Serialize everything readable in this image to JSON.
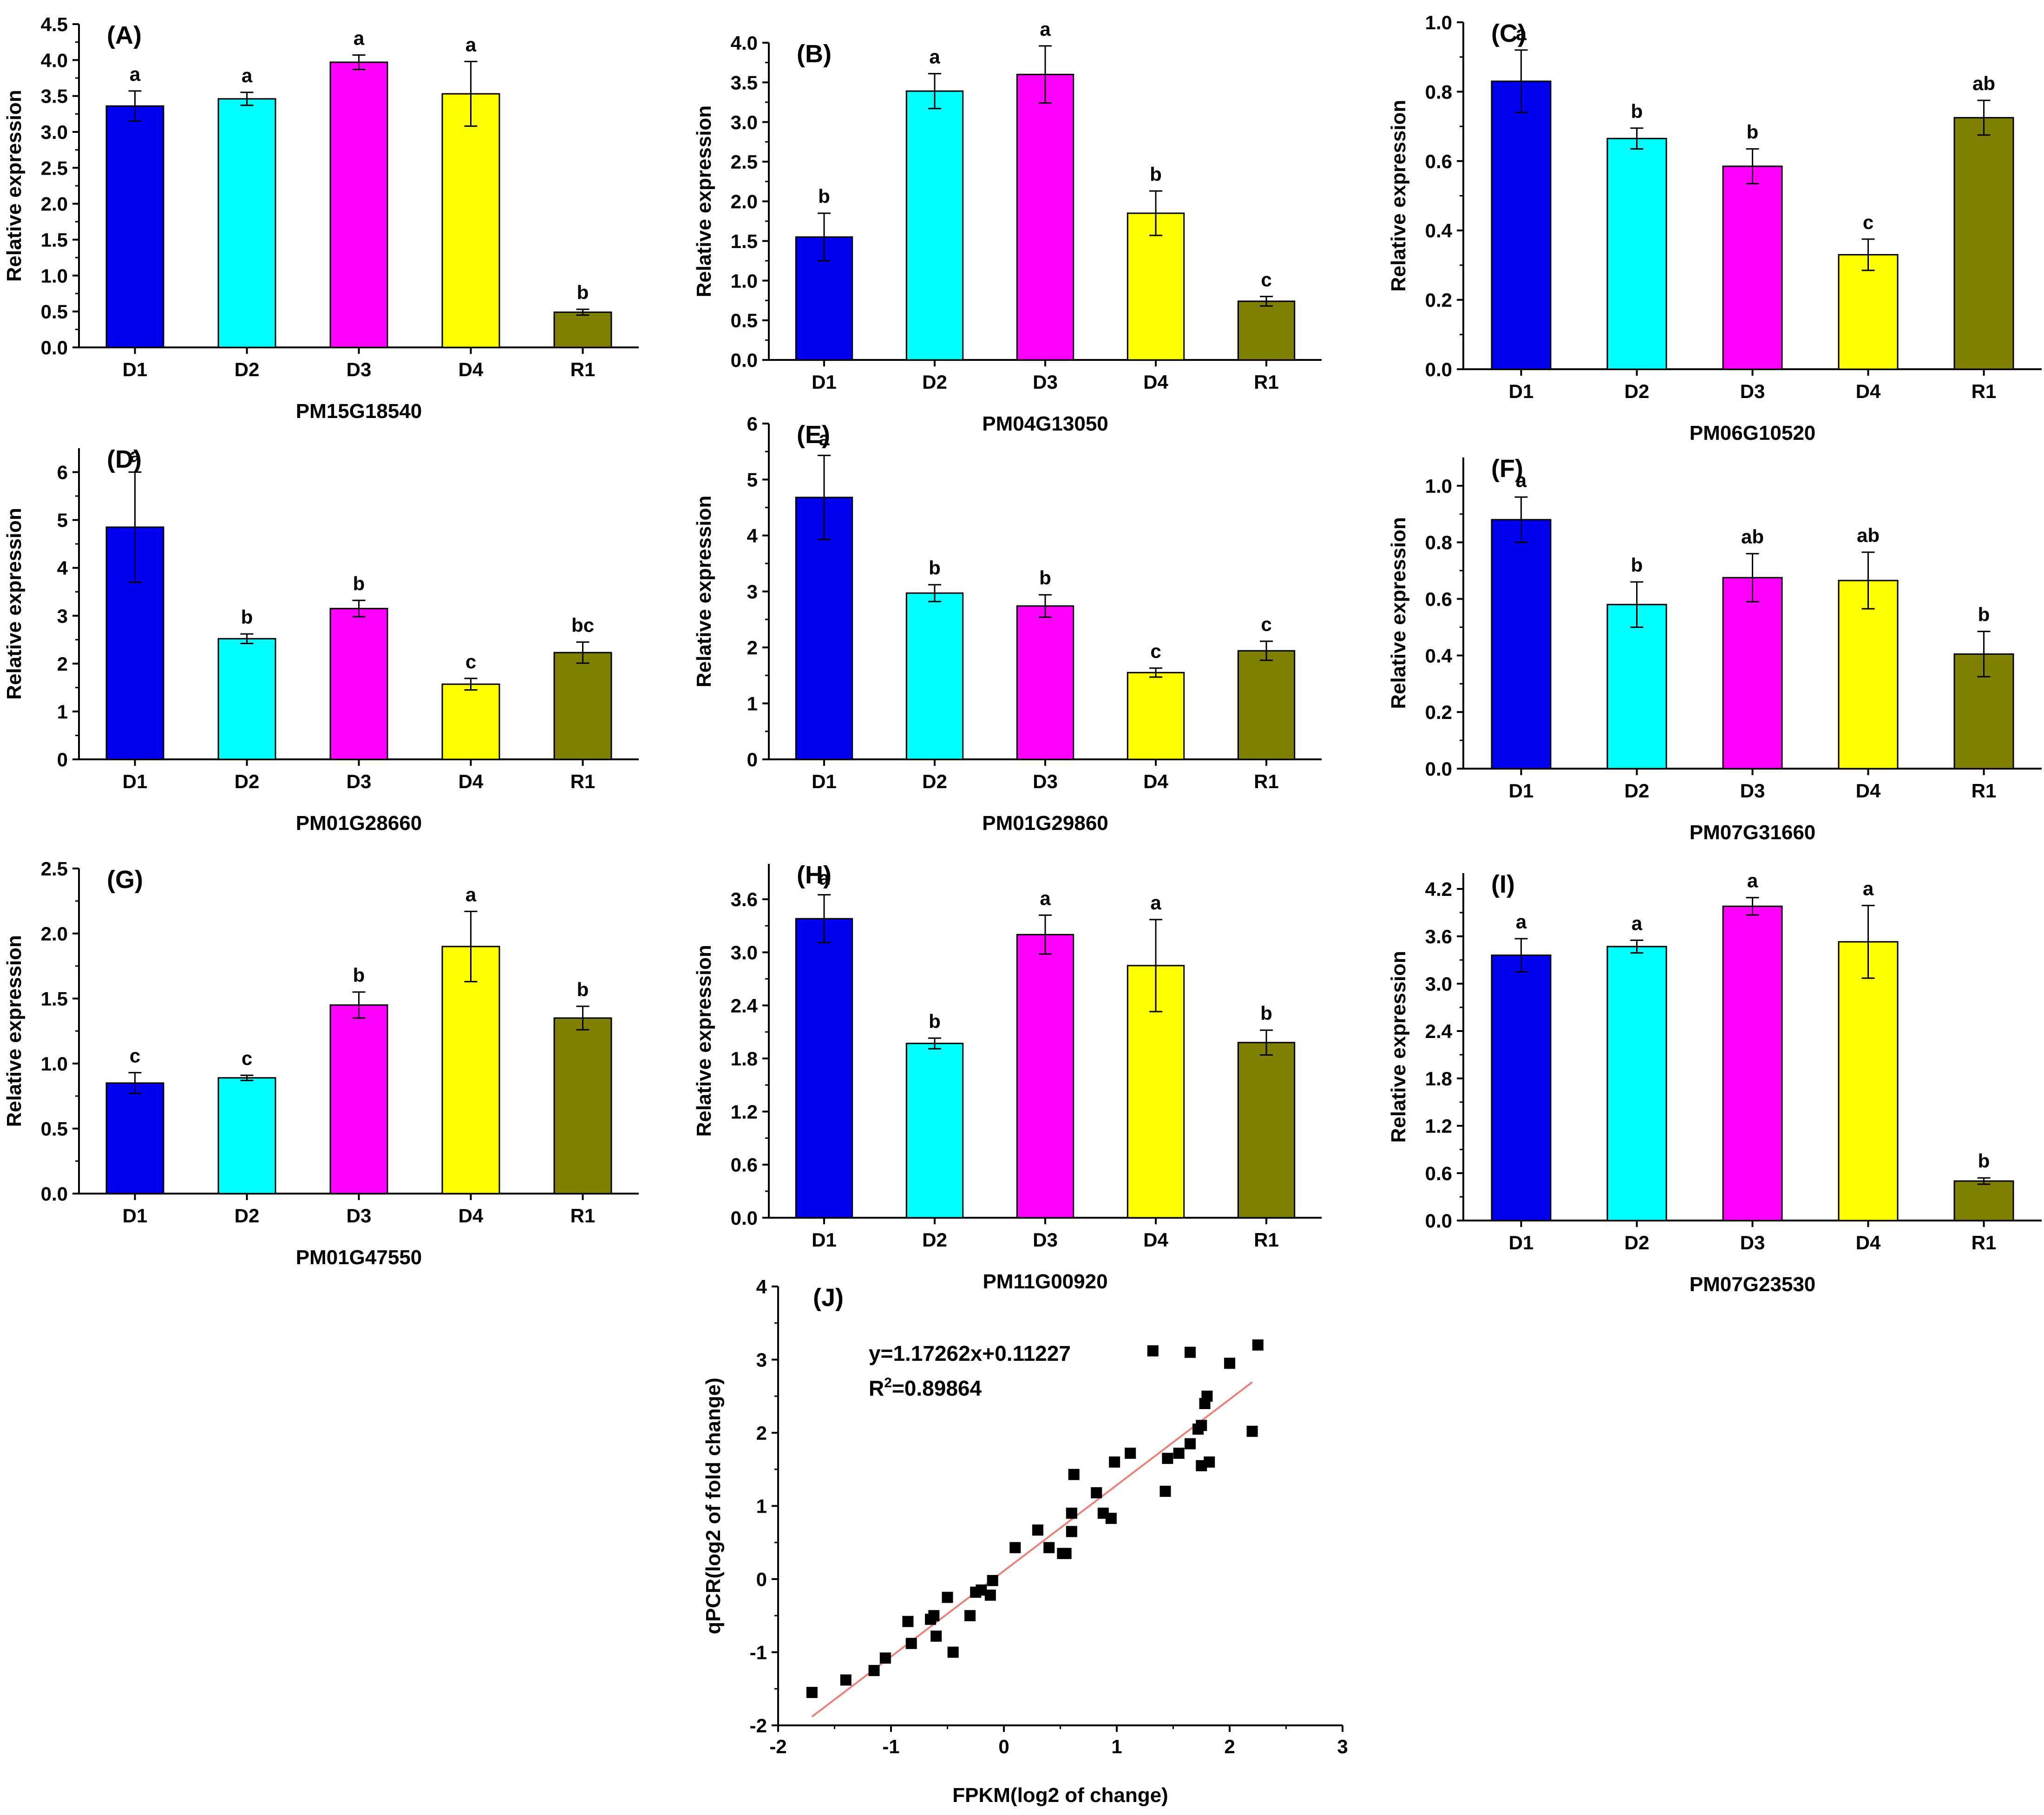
{
  "chart_data": [
    {
      "panel": "(A)",
      "type": "bar",
      "gene": "PM15G18540",
      "ylabel": "Relative expression",
      "categories": [
        "D1",
        "D2",
        "D3",
        "D4",
        "R1"
      ],
      "values": [
        3.36,
        3.46,
        3.97,
        3.53,
        0.49
      ],
      "errors": [
        0.21,
        0.09,
        0.1,
        0.45,
        0.04
      ],
      "letters": [
        "a",
        "a",
        "a",
        "a",
        "b"
      ],
      "ylim": [
        0,
        4.5
      ],
      "yticks": [
        "0.0",
        "0.5",
        "1.0",
        "1.5",
        "2.0",
        "2.5",
        "3.0",
        "3.5",
        "4.0",
        "4.5"
      ]
    },
    {
      "panel": "(B)",
      "type": "bar",
      "gene": "PM04G13050",
      "ylabel": "Relative expression",
      "categories": [
        "D1",
        "D2",
        "D3",
        "D4",
        "R1"
      ],
      "values": [
        1.55,
        3.39,
        3.6,
        1.85,
        0.74
      ],
      "errors": [
        0.3,
        0.22,
        0.36,
        0.28,
        0.06
      ],
      "letters": [
        "b",
        "a",
        "a",
        "b",
        "c"
      ],
      "ylim": [
        0,
        4.0
      ],
      "yticks": [
        "0.0",
        "0.5",
        "1.0",
        "1.5",
        "2.0",
        "2.5",
        "3.0",
        "3.5",
        "4.0"
      ]
    },
    {
      "panel": "(C)",
      "type": "bar",
      "gene": "PM06G10520",
      "ylabel": "Relative expression",
      "categories": [
        "D1",
        "D2",
        "D3",
        "D4",
        "R1"
      ],
      "values": [
        0.83,
        0.665,
        0.585,
        0.33,
        0.725
      ],
      "errors": [
        0.09,
        0.03,
        0.05,
        0.045,
        0.05
      ],
      "letters": [
        "a",
        "b",
        "b",
        "c",
        "ab"
      ],
      "ylim": [
        0,
        1.0
      ],
      "yticks": [
        "0.0",
        "0.2",
        "0.4",
        "0.6",
        "0.8",
        "1.0"
      ]
    },
    {
      "panel": "(D)",
      "type": "bar",
      "gene": "PM01G28660",
      "ylabel": "Relative expression",
      "categories": [
        "D1",
        "D2",
        "D3",
        "D4",
        "R1"
      ],
      "values": [
        4.85,
        2.52,
        3.15,
        1.57,
        2.23
      ],
      "errors": [
        1.15,
        0.1,
        0.17,
        0.12,
        0.22
      ],
      "letters": [
        "a",
        "b",
        "b",
        "c",
        "bc"
      ],
      "ylim": [
        0,
        6.5
      ],
      "yticks": [
        "0",
        "1",
        "2",
        "3",
        "4",
        "5",
        "6"
      ]
    },
    {
      "panel": "(E)",
      "type": "bar",
      "gene": "PM01G29860",
      "ylabel": "Relative expression",
      "categories": [
        "D1",
        "D2",
        "D3",
        "D4",
        "R1"
      ],
      "values": [
        4.68,
        2.97,
        2.74,
        1.55,
        1.94
      ],
      "errors": [
        0.75,
        0.15,
        0.2,
        0.08,
        0.17
      ],
      "letters": [
        "a",
        "b",
        "b",
        "c",
        "c"
      ],
      "ylim": [
        0,
        6
      ],
      "yticks": [
        "0",
        "1",
        "2",
        "3",
        "4",
        "5",
        "6"
      ]
    },
    {
      "panel": "(F)",
      "type": "bar",
      "gene": "PM07G31660",
      "ylabel": "Relative expression",
      "categories": [
        "D1",
        "D2",
        "D3",
        "D4",
        "R1"
      ],
      "values": [
        0.88,
        0.58,
        0.675,
        0.665,
        0.405
      ],
      "errors": [
        0.08,
        0.08,
        0.085,
        0.1,
        0.08
      ],
      "letters": [
        "a",
        "b",
        "ab",
        "ab",
        "b"
      ],
      "ylim": [
        0,
        1.1
      ],
      "yticks": [
        "0.0",
        "0.2",
        "0.4",
        "0.6",
        "0.8",
        "1.0"
      ]
    },
    {
      "panel": "(G)",
      "type": "bar",
      "gene": "PM01G47550",
      "ylabel": "Relative expression",
      "categories": [
        "D1",
        "D2",
        "D3",
        "D4",
        "R1"
      ],
      "values": [
        0.85,
        0.89,
        1.45,
        1.9,
        1.35
      ],
      "errors": [
        0.08,
        0.02,
        0.1,
        0.27,
        0.09
      ],
      "letters": [
        "c",
        "c",
        "b",
        "a",
        "b"
      ],
      "ylim": [
        0,
        2.5
      ],
      "yticks": [
        "0.0",
        "0.5",
        "1.0",
        "1.5",
        "2.0",
        "2.5"
      ]
    },
    {
      "panel": "(H)",
      "type": "bar",
      "gene": "PM11G00920",
      "ylabel": "Relative expression",
      "categories": [
        "D1",
        "D2",
        "D3",
        "D4",
        "R1"
      ],
      "values": [
        3.38,
        1.97,
        3.2,
        2.85,
        1.98
      ],
      "errors": [
        0.27,
        0.06,
        0.22,
        0.52,
        0.14
      ],
      "letters": [
        "a",
        "b",
        "a",
        "a",
        "b"
      ],
      "ylim": [
        0,
        4.0
      ],
      "yticks": [
        "0.0",
        "0.6",
        "1.2",
        "1.8",
        "2.4",
        "3.0",
        "3.6"
      ]
    },
    {
      "panel": "(I)",
      "type": "bar",
      "gene": "PM07G23530",
      "ylabel": "Relative expression",
      "categories": [
        "D1",
        "D2",
        "D3",
        "D4",
        "R1"
      ],
      "values": [
        3.36,
        3.47,
        3.98,
        3.53,
        0.5
      ],
      "errors": [
        0.21,
        0.08,
        0.11,
        0.46,
        0.04
      ],
      "letters": [
        "a",
        "a",
        "a",
        "a",
        "b"
      ],
      "ylim": [
        0,
        4.4
      ],
      "yticks": [
        "0.0",
        "0.6",
        "1.2",
        "1.8",
        "2.4",
        "3.0",
        "3.6",
        "4.2"
      ]
    },
    {
      "panel": "(J)",
      "type": "scatter",
      "xlabel": "FPKM(log2 of change)",
      "ylabel": "qPCR(log2 of fold change)",
      "xlim": [
        -2,
        3
      ],
      "ylim": [
        -2,
        4
      ],
      "xticks": [
        "-2",
        "-1",
        "0",
        "1",
        "2",
        "3"
      ],
      "yticks": [
        "-2",
        "-1",
        "0",
        "1",
        "2",
        "3",
        "4"
      ],
      "equation": "y=1.17262x+0.11227",
      "r2_prefix": "R",
      "r2_exp": "2",
      "r2_value": "=0.89864",
      "fit": {
        "slope": 1.17262,
        "intercept": 0.11227,
        "x_range": [
          -1.7,
          2.2
        ]
      },
      "points": [
        [
          -1.7,
          -1.55
        ],
        [
          -1.4,
          -1.38
        ],
        [
          -1.15,
          -1.25
        ],
        [
          -1.05,
          -1.08
        ],
        [
          -0.85,
          -0.58
        ],
        [
          -0.82,
          -0.88
        ],
        [
          -0.65,
          -0.55
        ],
        [
          -0.62,
          -0.5
        ],
        [
          -0.6,
          -0.78
        ],
        [
          -0.5,
          -0.25
        ],
        [
          -0.45,
          -1.0
        ],
        [
          -0.3,
          -0.5
        ],
        [
          -0.25,
          -0.18
        ],
        [
          -0.2,
          -0.15
        ],
        [
          -0.12,
          -0.22
        ],
        [
          -0.1,
          -0.02
        ],
        [
          0.1,
          0.43
        ],
        [
          0.3,
          0.67
        ],
        [
          0.4,
          0.43
        ],
        [
          0.52,
          0.35
        ],
        [
          0.55,
          0.35
        ],
        [
          0.6,
          0.9
        ],
        [
          0.6,
          0.65
        ],
        [
          0.62,
          1.43
        ],
        [
          0.82,
          1.18
        ],
        [
          0.88,
          0.9
        ],
        [
          0.95,
          0.83
        ],
        [
          0.98,
          1.6
        ],
        [
          1.12,
          1.72
        ],
        [
          1.32,
          3.12
        ],
        [
          1.43,
          1.2
        ],
        [
          1.45,
          1.65
        ],
        [
          1.55,
          1.72
        ],
        [
          1.65,
          3.1
        ],
        [
          1.65,
          1.85
        ],
        [
          1.72,
          2.05
        ],
        [
          1.75,
          1.55
        ],
        [
          1.75,
          2.1
        ],
        [
          1.78,
          2.4
        ],
        [
          1.8,
          2.5
        ],
        [
          1.82,
          1.6
        ],
        [
          2.0,
          2.95
        ],
        [
          2.2,
          2.02
        ],
        [
          2.25,
          3.2
        ]
      ]
    }
  ]
}
